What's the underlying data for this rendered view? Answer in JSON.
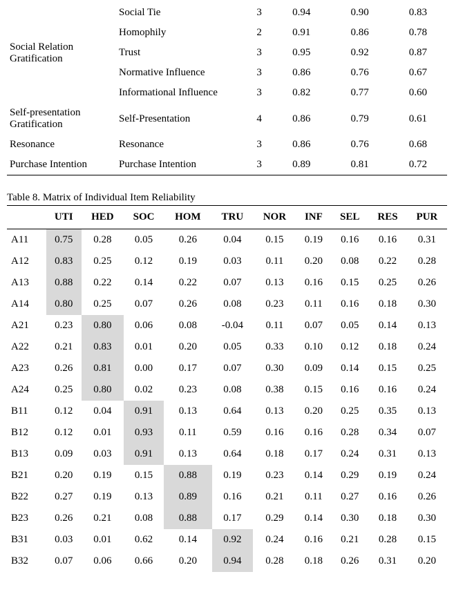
{
  "table1": {
    "rows": [
      {
        "group": "",
        "item": "Social Tie",
        "n": "3",
        "v1": "0.94",
        "v2": "0.90",
        "v3": "0.83"
      },
      {
        "group": "",
        "item": "Homophily",
        "n": "2",
        "v1": "0.91",
        "v2": "0.86",
        "v3": "0.78"
      },
      {
        "group": "Social Relation Gratification",
        "item": "Trust",
        "n": "3",
        "v1": "0.95",
        "v2": "0.92",
        "v3": "0.87"
      },
      {
        "group": "",
        "item": "Normative Influence",
        "n": "3",
        "v1": "0.86",
        "v2": "0.76",
        "v3": "0.67"
      },
      {
        "group": "",
        "item": "Informational Influence",
        "n": "3",
        "v1": "0.82",
        "v2": "0.77",
        "v3": "0.60"
      },
      {
        "group": "Self-presentation Gratification",
        "item": "Self-Presentation",
        "n": "4",
        "v1": "0.86",
        "v2": "0.79",
        "v3": "0.61"
      },
      {
        "group": "Resonance",
        "item": "Resonance",
        "n": "3",
        "v1": "0.86",
        "v2": "0.76",
        "v3": "0.68"
      },
      {
        "group": "Purchase Intention",
        "item": "Purchase Intention",
        "n": "3",
        "v1": "0.89",
        "v2": "0.81",
        "v3": "0.72"
      }
    ]
  },
  "table2": {
    "caption": "Table 8. Matrix of Individual Item Reliability",
    "headers": [
      "",
      "UTI",
      "HED",
      "SOC",
      "HOM",
      "TRU",
      "NOR",
      "INF",
      "SEL",
      "RES",
      "PUR"
    ],
    "highlight_color": "#d9d9d9",
    "rows": [
      {
        "label": "A11",
        "vals": [
          "0.75",
          "0.28",
          "0.05",
          "0.26",
          "0.04",
          "0.15",
          "0.19",
          "0.16",
          "0.16",
          "0.31"
        ],
        "hl": 0
      },
      {
        "label": "A12",
        "vals": [
          "0.83",
          "0.25",
          "0.12",
          "0.19",
          "0.03",
          "0.11",
          "0.20",
          "0.08",
          "0.22",
          "0.28"
        ],
        "hl": 0
      },
      {
        "label": "A13",
        "vals": [
          "0.88",
          "0.22",
          "0.14",
          "0.22",
          "0.07",
          "0.13",
          "0.16",
          "0.15",
          "0.25",
          "0.26"
        ],
        "hl": 0
      },
      {
        "label": "A14",
        "vals": [
          "0.80",
          "0.25",
          "0.07",
          "0.26",
          "0.08",
          "0.23",
          "0.11",
          "0.16",
          "0.18",
          "0.30"
        ],
        "hl": 0
      },
      {
        "label": "A21",
        "vals": [
          "0.23",
          "0.80",
          "0.06",
          "0.08",
          "-0.04",
          "0.11",
          "0.07",
          "0.05",
          "0.14",
          "0.13"
        ],
        "hl": 1
      },
      {
        "label": "A22",
        "vals": [
          "0.21",
          "0.83",
          "0.01",
          "0.20",
          "0.05",
          "0.33",
          "0.10",
          "0.12",
          "0.18",
          "0.24"
        ],
        "hl": 1
      },
      {
        "label": "A23",
        "vals": [
          "0.26",
          "0.81",
          "0.00",
          "0.17",
          "0.07",
          "0.30",
          "0.09",
          "0.14",
          "0.15",
          "0.25"
        ],
        "hl": 1
      },
      {
        "label": "A24",
        "vals": [
          "0.25",
          "0.80",
          "0.02",
          "0.23",
          "0.08",
          "0.38",
          "0.15",
          "0.16",
          "0.16",
          "0.24"
        ],
        "hl": 1
      },
      {
        "label": "B11",
        "vals": [
          "0.12",
          "0.04",
          "0.91",
          "0.13",
          "0.64",
          "0.13",
          "0.20",
          "0.25",
          "0.35",
          "0.13"
        ],
        "hl": 2
      },
      {
        "label": "B12",
        "vals": [
          "0.12",
          "0.01",
          "0.93",
          "0.11",
          "0.59",
          "0.16",
          "0.16",
          "0.28",
          "0.34",
          "0.07"
        ],
        "hl": 2
      },
      {
        "label": "B13",
        "vals": [
          "0.09",
          "0.03",
          "0.91",
          "0.13",
          "0.64",
          "0.18",
          "0.17",
          "0.24",
          "0.31",
          "0.13"
        ],
        "hl": 2
      },
      {
        "label": "B21",
        "vals": [
          "0.20",
          "0.19",
          "0.15",
          "0.88",
          "0.19",
          "0.23",
          "0.14",
          "0.29",
          "0.19",
          "0.24"
        ],
        "hl": 3
      },
      {
        "label": "B22",
        "vals": [
          "0.27",
          "0.19",
          "0.13",
          "0.89",
          "0.16",
          "0.21",
          "0.11",
          "0.27",
          "0.16",
          "0.26"
        ],
        "hl": 3
      },
      {
        "label": "B23",
        "vals": [
          "0.26",
          "0.21",
          "0.08",
          "0.88",
          "0.17",
          "0.29",
          "0.14",
          "0.30",
          "0.18",
          "0.30"
        ],
        "hl": 3
      },
      {
        "label": "B31",
        "vals": [
          "0.03",
          "0.01",
          "0.62",
          "0.14",
          "0.92",
          "0.24",
          "0.16",
          "0.21",
          "0.28",
          "0.15"
        ],
        "hl": 4
      },
      {
        "label": "B32",
        "vals": [
          "0.07",
          "0.06",
          "0.66",
          "0.20",
          "0.94",
          "0.28",
          "0.18",
          "0.26",
          "0.31",
          "0.20"
        ],
        "hl": 4
      }
    ]
  }
}
